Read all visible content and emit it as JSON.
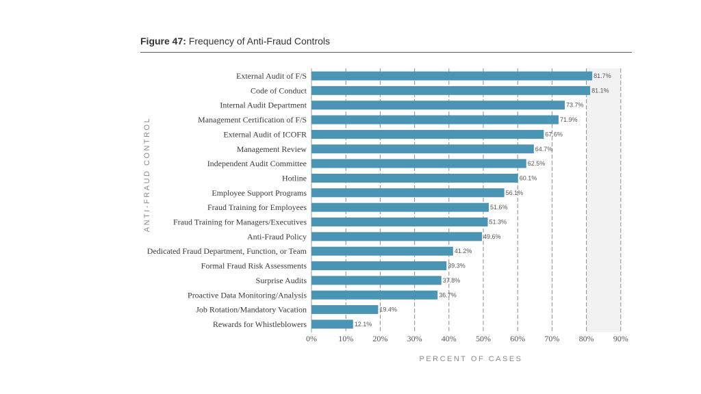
{
  "figure": {
    "number": "Figure 47:",
    "title": "Frequency of Anti-Fraud Controls"
  },
  "chart_data": {
    "type": "bar",
    "orientation": "horizontal",
    "title": "Frequency of Anti-Fraud Controls",
    "xlabel": "PERCENT OF CASES",
    "ylabel": "ANTI-FRAUD CONTROL",
    "xlim": [
      0,
      90
    ],
    "x_ticks": [
      "0%",
      "10%",
      "20%",
      "30%",
      "40%",
      "50%",
      "60%",
      "70%",
      "80%",
      "90%"
    ],
    "grid": "vertical dashed",
    "bar_color": "#4a95b3",
    "categories": [
      "External Audit of F/S",
      "Code of Conduct",
      "Internal Audit Department",
      "Management Certification of F/S",
      "External Audit of ICOFR",
      "Management Review",
      "Independent Audit Committee",
      "Hotline",
      "Employee Support Programs",
      "Fraud Training for Employees",
      "Fraud Training for Managers/Executives",
      "Anti-Fraud Policy",
      "Dedicated Fraud Department, Function, or Team",
      "Formal Fraud Risk Assessments",
      "Surprise Audits",
      "Proactive Data Monitoring/Analysis",
      "Job Rotation/Mandatory Vacation",
      "Rewards for Whistleblowers"
    ],
    "values": [
      81.7,
      81.1,
      73.7,
      71.9,
      67.6,
      64.7,
      62.5,
      60.1,
      56.1,
      51.6,
      51.3,
      49.6,
      41.2,
      39.3,
      37.8,
      36.7,
      19.4,
      12.1
    ],
    "value_labels": [
      "81.7%",
      "81.1%",
      "73.7%",
      "71.9%",
      "67.6%",
      "64.7%",
      "62.5%",
      "60.1%",
      "56.1%",
      "51.6%",
      "51.3%",
      "49.6%",
      "41.2%",
      "39.3%",
      "37.8%",
      "36.7%",
      "19.4%",
      "12.1%"
    ]
  }
}
